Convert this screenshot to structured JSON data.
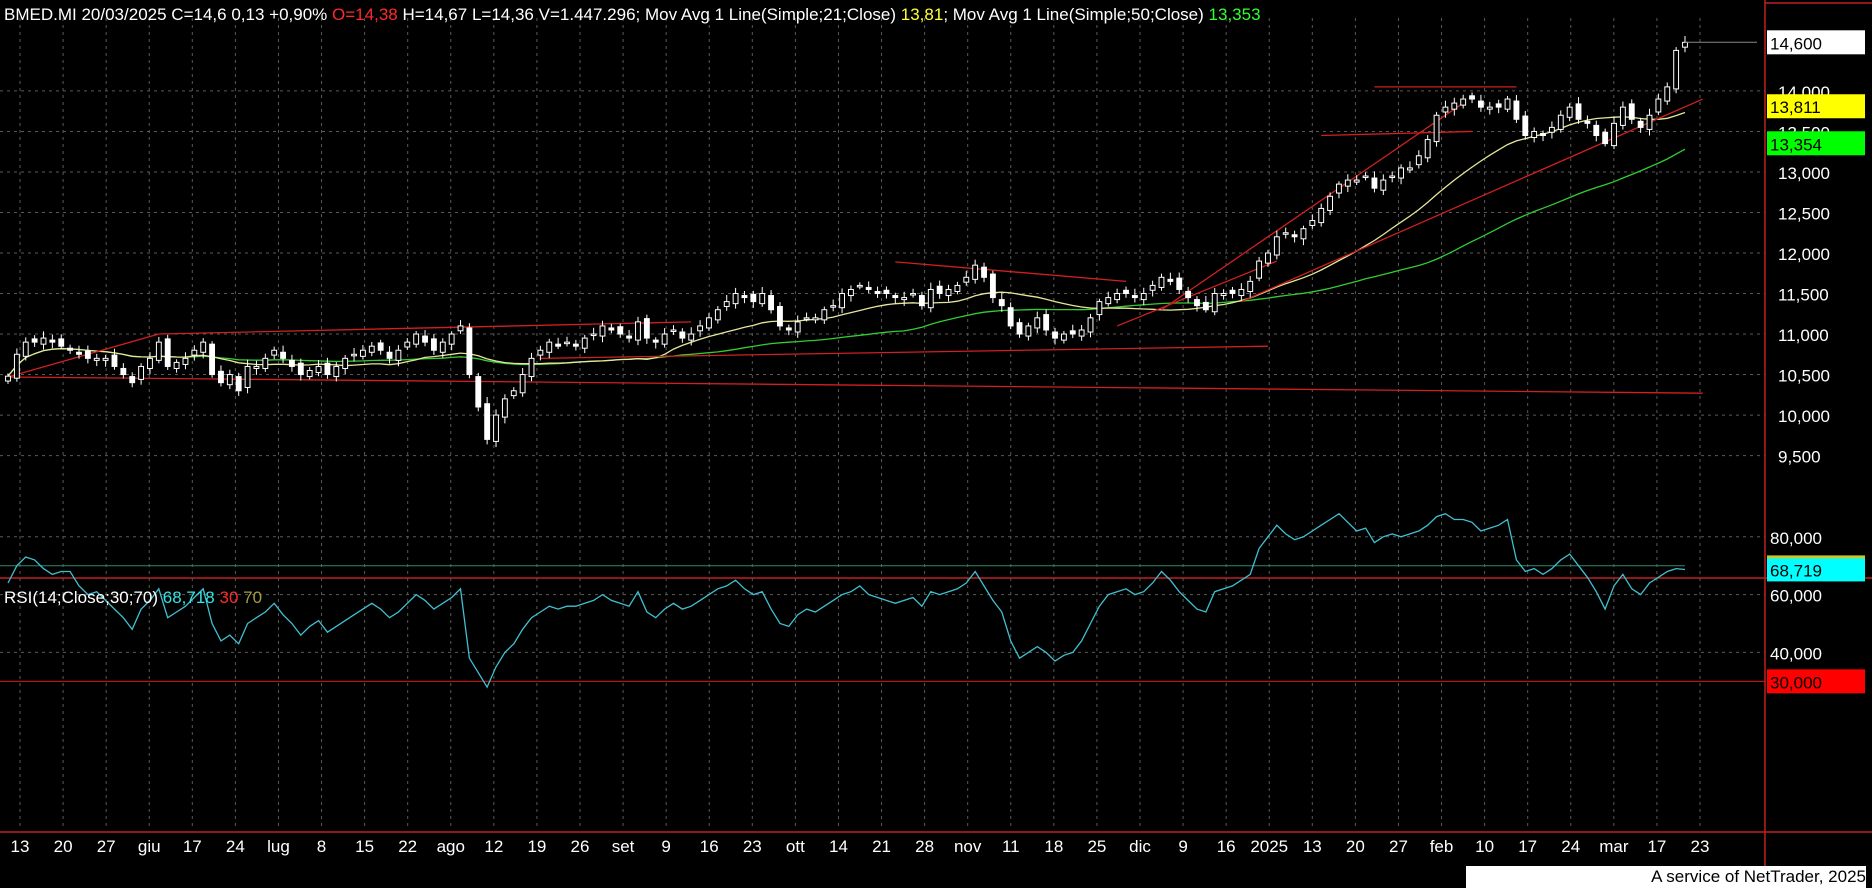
{
  "header": {
    "symbol": "BMED.MI",
    "date": "20/03/2025",
    "close": "C=14,6",
    "change": "0,13",
    "change_pct": "+0,90%",
    "open": "O=14,38",
    "high": "H=14,67",
    "low": "L=14,36",
    "volume": "V=1.447.296",
    "ma21_label": "Mov Avg 1 Line(Simple;21;Close)",
    "ma21_value": "13,81",
    "ma50_label": "Mov Avg 1 Line(Simple;50;Close)",
    "ma50_value": "13,353"
  },
  "rsi_header": {
    "label": "RSI(14;Close;30;70)",
    "value": "68,718",
    "low": "30",
    "high": "70"
  },
  "footer": "A service of NetTrader, 2025",
  "colors": {
    "background": "#000000",
    "grid": "#5a5a5a",
    "up": "#ffffff",
    "down": "#ffffff",
    "ma21": "#e6e69a",
    "ma50": "#33cc33",
    "trend": "#d02020",
    "rsi": "#40c0d0",
    "rsi_band": "#2e8a6a",
    "price_tag": "#ffffff",
    "ma21_tag": "#ffff00",
    "ma50_tag": "#00ff00",
    "rsi_tag": "#00ffff",
    "band_tag": "#ff0000"
  },
  "chart_data": [
    {
      "type": "candlestick",
      "title": "BMED.MI",
      "ylim": [
        9100,
        14900
      ],
      "yticks": [
        9500,
        10000,
        10500,
        11000,
        11500,
        12000,
        12500,
        13000,
        13500,
        14000
      ],
      "ytick_labels": [
        "9,500",
        "10,000",
        "10,500",
        "11,000",
        "11,500",
        "12,000",
        "12,500",
        "13,000",
        "13,500",
        "14,000"
      ],
      "xtick_labels": [
        "13",
        "20",
        "27",
        "giu",
        "17",
        "24",
        "lug",
        "8",
        "15",
        "22",
        "ago",
        "12",
        "19",
        "26",
        "set",
        "9",
        "16",
        "23",
        "ott",
        "14",
        "21",
        "28",
        "nov",
        "11",
        "18",
        "25",
        "dic",
        "9",
        "16",
        "2025",
        "13",
        "20",
        "27",
        "feb",
        "10",
        "17",
        "24",
        "mar",
        "17",
        "23"
      ],
      "price_tags": [
        {
          "label": "14,600",
          "value": 14600,
          "kind": "price"
        },
        {
          "label": "13,811",
          "value": 13811,
          "kind": "ma21"
        },
        {
          "label": "13,354",
          "value": 13354,
          "kind": "ma50"
        }
      ],
      "series": [
        {
          "name": "BMED.MI",
          "kind": "close",
          "values": [
            10480,
            10750,
            10900,
            10900,
            10950,
            10900,
            10850,
            10800,
            10750,
            10700,
            10700,
            10700,
            10600,
            10500,
            10400,
            10600,
            10700,
            10900,
            10600,
            10650,
            10700,
            10800,
            10900,
            10500,
            10400,
            10500,
            10300,
            10600,
            10600,
            10700,
            10800,
            10700,
            10600,
            10500,
            10550,
            10600,
            10500,
            10600,
            10700,
            10750,
            10800,
            10850,
            10800,
            10700,
            10800,
            10900,
            11000,
            10900,
            10800,
            10900,
            11000,
            11100,
            10500,
            10100,
            9700,
            10000,
            10200,
            10300,
            10500,
            10700,
            10800,
            10900,
            10850,
            10900,
            10850,
            10950,
            11000,
            11100,
            11050,
            11000,
            10950,
            11150,
            10950,
            10900,
            11000,
            11050,
            10950,
            11000,
            11100,
            11200,
            11300,
            11400,
            11500,
            11450,
            11400,
            11500,
            11300,
            11100,
            11050,
            11150,
            11200,
            11200,
            11300,
            11350,
            11500,
            11550,
            11600,
            11550,
            11500,
            11500,
            11450,
            11450,
            11500,
            11350,
            11550,
            11500,
            11550,
            11600,
            11700,
            11850,
            11700,
            11450,
            11350,
            11100,
            11000,
            11100,
            11200,
            11050,
            10950,
            11000,
            11000,
            11050,
            11200,
            11400,
            11450,
            11500,
            11500,
            11450,
            11500,
            11600,
            11700,
            11650,
            11550,
            11450,
            11350,
            11300,
            11500,
            11500,
            11500,
            11550,
            11650,
            11900,
            12000,
            12200,
            12250,
            12200,
            12300,
            12400,
            12550,
            12700,
            12850,
            12900,
            12900,
            12950,
            12800,
            12900,
            12950,
            13050,
            13050,
            13200,
            13400,
            13700,
            13800,
            13850,
            13900,
            13900,
            13800,
            13800,
            13800,
            13900,
            13650,
            13450,
            13500,
            13450,
            13550,
            13700,
            13800,
            13650,
            13600,
            13450,
            13350,
            13600,
            13800,
            13650,
            13550,
            13700,
            13900,
            14050,
            14500,
            14600
          ]
        },
        {
          "name": "Mov Avg 1 Line(Simple;21;Close)",
          "kind": "ma21",
          "values": []
        },
        {
          "name": "Mov Avg 1 Line(Simple;50;Close)",
          "kind": "ma50",
          "values": []
        }
      ],
      "trendlines": [
        {
          "from": [
            0,
            10470
          ],
          "to": [
            191,
            10270
          ]
        },
        {
          "from": [
            0,
            10470
          ],
          "to": [
            17,
            11000
          ]
        },
        {
          "from": [
            17,
            11000
          ],
          "to": [
            77,
            11150
          ]
        },
        {
          "from": [
            60,
            10700
          ],
          "to": [
            142,
            10850
          ]
        },
        {
          "from": [
            100,
            11890
          ],
          "to": [
            126,
            11650
          ]
        },
        {
          "from": [
            125,
            11100
          ],
          "to": [
            143,
            11900
          ]
        },
        {
          "from": [
            130,
            11300
          ],
          "to": [
            164,
            13850
          ]
        },
        {
          "from": [
            139,
            11400
          ],
          "to": [
            191,
            13900
          ]
        },
        {
          "from": [
            148,
            13450
          ],
          "to": [
            165,
            13500
          ]
        },
        {
          "from": [
            154,
            14050
          ],
          "to": [
            170,
            14050
          ]
        }
      ]
    },
    {
      "type": "line",
      "title": "RSI(14;Close;30;70)",
      "ylim": [
        27,
        91
      ],
      "yticks": [
        40,
        60,
        80
      ],
      "ytick_labels": [
        "40,000",
        "60,000",
        "80,000"
      ],
      "bands": [
        30,
        70
      ],
      "band_tags": [
        {
          "label": "30,000",
          "value": 30
        }
      ],
      "value_tag": {
        "label": "68,719",
        "value": 68.719
      },
      "series": [
        {
          "name": "RSI(14;Close;30;70)",
          "values": [
            64,
            70,
            73,
            72,
            69,
            67,
            68,
            68,
            63,
            60,
            61,
            58,
            55,
            52,
            48,
            55,
            58,
            62,
            52,
            54,
            56,
            59,
            62,
            50,
            44,
            46,
            43,
            50,
            52,
            54,
            57,
            53,
            50,
            46,
            49,
            51,
            47,
            49,
            51,
            53,
            55,
            57,
            55,
            52,
            54,
            57,
            60,
            58,
            55,
            57,
            59,
            62,
            38,
            33,
            28,
            35,
            40,
            43,
            48,
            52,
            54,
            56,
            55,
            56,
            56,
            57,
            58,
            60,
            58,
            57,
            56,
            61,
            54,
            52,
            55,
            57,
            55,
            56,
            58,
            60,
            62,
            63,
            65,
            62,
            60,
            61,
            55,
            50,
            49,
            53,
            55,
            54,
            56,
            58,
            60,
            61,
            63,
            60,
            59,
            58,
            57,
            58,
            59,
            56,
            61,
            60,
            61,
            62,
            64,
            68,
            63,
            58,
            54,
            44,
            38,
            40,
            42,
            40,
            37,
            39,
            40,
            44,
            50,
            56,
            60,
            61,
            62,
            60,
            61,
            64,
            68,
            65,
            61,
            58,
            55,
            54,
            61,
            62,
            63,
            65,
            67,
            76,
            80,
            84,
            81,
            79,
            80,
            82,
            84,
            86,
            88,
            85,
            82,
            83,
            78,
            80,
            81,
            80,
            81,
            82,
            84,
            87,
            88,
            86,
            86,
            85,
            82,
            83,
            84,
            86,
            72,
            68,
            69,
            67,
            69,
            72,
            74,
            70,
            66,
            61,
            55,
            63,
            67,
            62,
            60,
            64,
            66,
            68,
            69,
            68.7
          ]
        }
      ]
    }
  ]
}
